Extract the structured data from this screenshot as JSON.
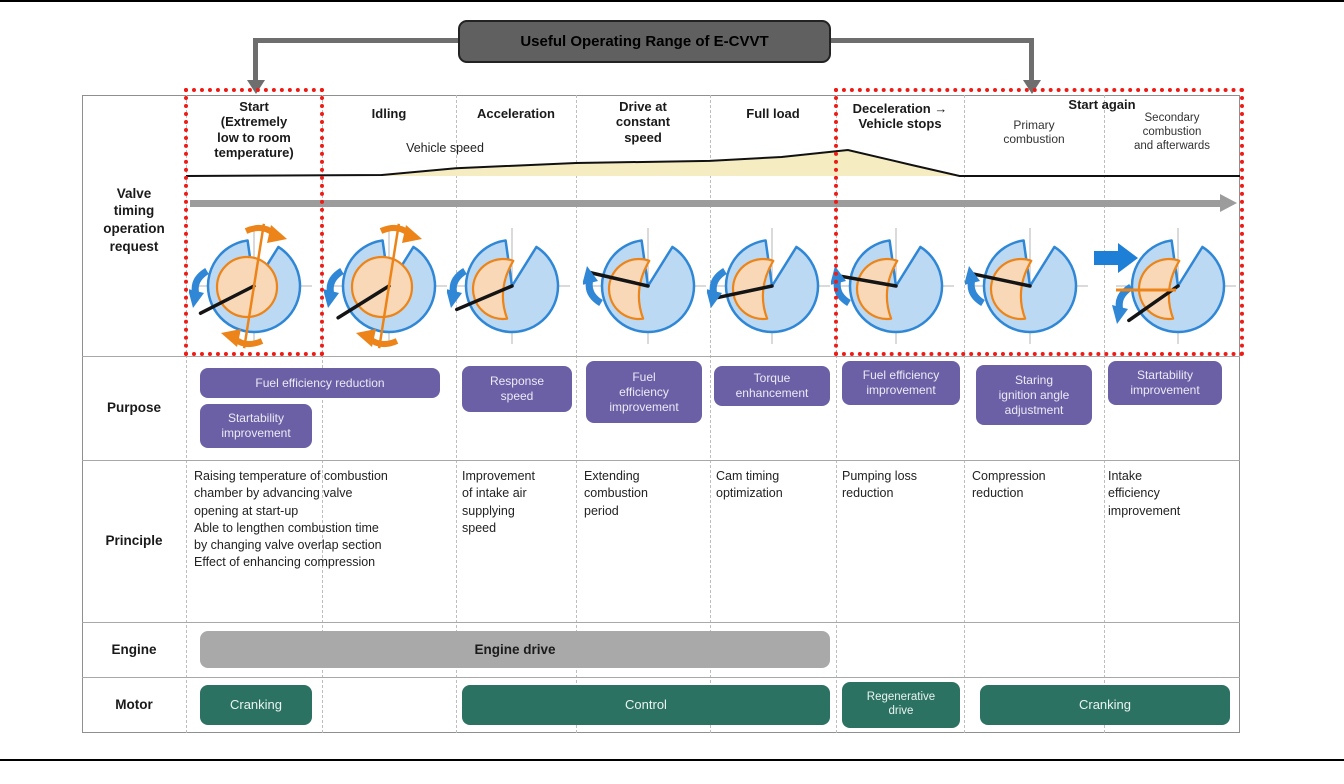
{
  "banner": {
    "title": "Useful Operating Range of E-CVVT"
  },
  "row_labels": {
    "valve": "Valve\ntiming\noperation\nrequest",
    "purpose": "Purpose",
    "principle": "Principle",
    "engine": "Engine",
    "motor": "Motor"
  },
  "columns": [
    {
      "id": "start",
      "label": "Start\n(Extremely\nlow to room\ntemperature)"
    },
    {
      "id": "idling",
      "label": "Idling"
    },
    {
      "id": "acceleration",
      "label": "Acceleration"
    },
    {
      "id": "constant-speed",
      "label": "Drive at\nconstant\nspeed"
    },
    {
      "id": "full-load",
      "label": "Full load"
    },
    {
      "id": "deceleration",
      "label": "Deceleration →\nVehicle stops"
    },
    {
      "id": "primary-combustion",
      "label": "Primary\ncombustion"
    },
    {
      "id": "secondary-combustion",
      "label": "Secondary\ncombustion\nand afterwards"
    }
  ],
  "start_again_label": "Start again",
  "vehicle_speed_label": "Vehicle speed",
  "purpose": {
    "fuel_efficiency_reduction": "Fuel efficiency reduction",
    "startability_improvement_start": "Startability\nimprovement",
    "response_speed": "Response\nspeed",
    "fuel_efficiency_improvement_constant": "Fuel\nefficiency\nimprovement",
    "torque_enhancement": "Torque\nenhancement",
    "fuel_efficiency_improvement_decel": "Fuel efficiency\nimprovement",
    "staring_ignition_angle_adjustment": "Staring\nignition angle\nadjustment",
    "startability_improvement_secondary": "Startability\nimprovement"
  },
  "principle": {
    "start_idling": "Raising temperature of combustion\nchamber by advancing valve\nopening at start-up\nAble to lengthen combustion time\nby changing valve overlap section\nEffect of enhancing compression",
    "acceleration": "Improvement\nof intake air\nsupplying\nspeed",
    "constant_speed": "Extending\ncombustion\nperiod",
    "full_load": "Cam timing\noptimization",
    "deceleration": "Pumping loss\nreduction",
    "primary": "Compression\nreduction",
    "secondary": "Intake\nefficiency\nimprovement"
  },
  "engine": {
    "drive": "Engine drive"
  },
  "motor": {
    "cranking_start": "Cranking",
    "control": "Control",
    "regenerative_drive": "Regenerative\ndrive",
    "cranking_again": "Cranking"
  },
  "colors": {
    "purple": "#6b5fa5",
    "green": "#2c7263",
    "engine-gray": "#a9a9a9",
    "banner-gray": "#606060",
    "red": "#ee1c17",
    "blue": "#2f87d5",
    "blue-fill": "#bcd9f3",
    "orange": "#ec8419",
    "orange-fill": "#f8d8b6",
    "speed-fill": "#f5ecc2",
    "arrow-gray": "#6e6e6e",
    "timeline-gray": "#9c9c9c"
  },
  "speed_profile": {
    "description": "relative vehicle speed across phases, 0 = stopped, 1 = peak before deceleration",
    "points": [
      [
        0,
        0
      ],
      [
        0.186,
        0.04
      ],
      [
        0.256,
        0.3
      ],
      [
        0.37,
        0.5
      ],
      [
        0.497,
        0.58
      ],
      [
        0.565,
        0.73
      ],
      [
        0.628,
        1
      ],
      [
        0.689,
        0.42
      ],
      [
        0.734,
        0
      ],
      [
        1,
        0
      ]
    ]
  },
  "valve_diagrams": [
    {
      "name": "start",
      "black_angle": 207,
      "blue_arrow": "down",
      "orange": "full",
      "orange_tilt_line": true,
      "orange_spin_arrows": true
    },
    {
      "name": "idling",
      "black_angle": 212,
      "blue_arrow": "down",
      "orange": "full",
      "orange_tilt_line": true,
      "orange_spin_arrows": true
    },
    {
      "name": "acceleration",
      "black_angle": 203,
      "blue_arrow": "down",
      "orange": "crescent"
    },
    {
      "name": "drive-at-constant-speed",
      "black_angle": 167,
      "blue_arrow": "up",
      "orange": "crescent"
    },
    {
      "name": "full-load",
      "black_angle": 192,
      "blue_arrow": "down",
      "orange": "crescent"
    },
    {
      "name": "deceleration",
      "black_angle": 170,
      "blue_arrow": "up",
      "orange": "crescent"
    },
    {
      "name": "primary-combustion",
      "black_angle": 168,
      "blue_arrow": "up",
      "orange": "crescent"
    },
    {
      "name": "secondary-combustion",
      "black_angle": 215,
      "blue_arrow": "down",
      "blue_arrow_dy": 16,
      "orange": "crescent",
      "big_blue_arrow": true,
      "orange_center_line": true,
      "wide": true
    }
  ]
}
